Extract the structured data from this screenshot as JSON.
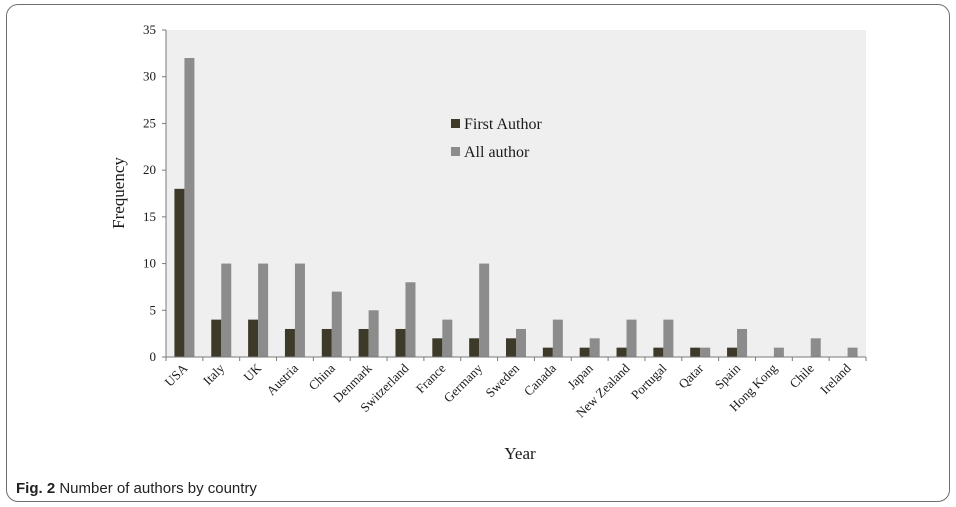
{
  "caption": {
    "label": "Fig. 2",
    "text": "Number of authors by country"
  },
  "colors": {
    "first_author": "#3d3a2a",
    "all_author": "#8c8c8c",
    "plot_bg": "#efefef",
    "axis": "#7a7a7a"
  },
  "chart_data": {
    "type": "bar",
    "title": "",
    "xlabel": "Year",
    "ylabel": "Frequency",
    "ylim": [
      0,
      35
    ],
    "yticks": [
      0,
      5,
      10,
      15,
      20,
      25,
      30,
      35
    ],
    "grid": false,
    "legend_position": "center-top",
    "categories": [
      "USA",
      "Italy",
      "UK",
      "Austria",
      "China",
      "Denmark",
      "Switzerland",
      "France",
      "Germany",
      "Sweden",
      "Canada",
      "Japan",
      "New Zealand",
      "Portugal",
      "Qatar",
      "Spain",
      "Hong Kong",
      "Chile",
      "Ireland"
    ],
    "series": [
      {
        "name": "First Author",
        "values": [
          18,
          4,
          4,
          3,
          3,
          3,
          3,
          2,
          2,
          2,
          1,
          1,
          1,
          1,
          1,
          1,
          0,
          0,
          0
        ]
      },
      {
        "name": "All author",
        "values": [
          32,
          10,
          10,
          10,
          7,
          5,
          8,
          4,
          10,
          3,
          4,
          2,
          4,
          4,
          1,
          3,
          1,
          2,
          1
        ]
      }
    ]
  }
}
